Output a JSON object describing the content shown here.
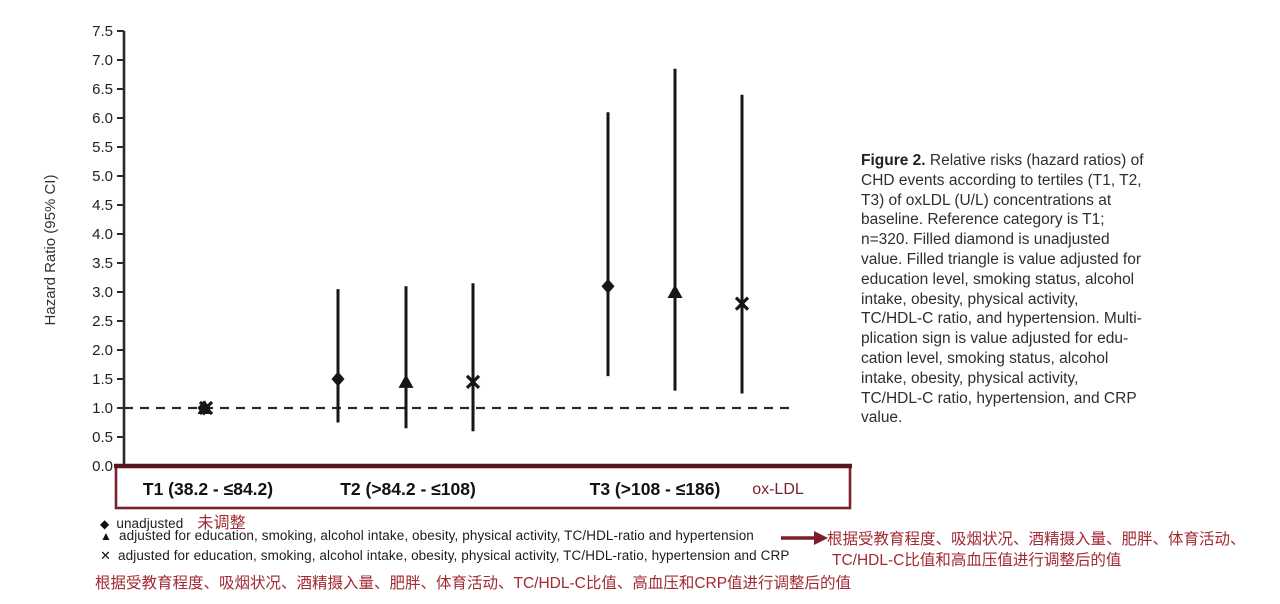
{
  "colors": {
    "plot_black": "#161616",
    "axis_gray": "#2a2a2a",
    "maroon_box": "#7d2130",
    "maroon_dark": "#571520",
    "red_text": "#a12a33",
    "caption_gray": "#2e2e2e"
  },
  "chart_data": {
    "type": "scatter",
    "subtype": "forest-plot-error-bars",
    "title": "",
    "ylabel": "Hazard Ratio (95% CI)",
    "xlabel": "",
    "ylim": [
      0,
      7.5
    ],
    "ytick_step": 0.5,
    "grid": false,
    "reference_line": 1.0,
    "x_group_label": "ox-LDL",
    "categories": [
      "T1 (38.2 - ≤84.2)",
      "T2 (>84.2 - ≤108)",
      "T3 (>108 - ≤186)"
    ],
    "series": [
      {
        "name": "unadjusted",
        "marker": "diamond",
        "values": [
          {
            "category": "T1",
            "hr": 1.0,
            "ci_low": null,
            "ci_high": null
          },
          {
            "category": "T2",
            "hr": 1.5,
            "ci_low": 0.75,
            "ci_high": 3.05
          },
          {
            "category": "T3",
            "hr": 3.1,
            "ci_low": 1.55,
            "ci_high": 6.1
          }
        ]
      },
      {
        "name": "adjusted for education, smoking, alcohol intake, obesity, physical activity, TC/HDL-ratio and hypertension",
        "marker": "triangle",
        "values": [
          {
            "category": "T1",
            "hr": 1.0,
            "ci_low": null,
            "ci_high": null
          },
          {
            "category": "T2",
            "hr": 1.45,
            "ci_low": 0.65,
            "ci_high": 3.1
          },
          {
            "category": "T3",
            "hr": 3.0,
            "ci_low": 1.3,
            "ci_high": 6.85
          }
        ]
      },
      {
        "name": "adjusted for education, smoking, alcohol intake, obesity, physical activity, TC/HDL-ratio, hypertension and CRP",
        "marker": "multiplication-sign",
        "values": [
          {
            "category": "T1",
            "hr": 1.0,
            "ci_low": null,
            "ci_high": null
          },
          {
            "category": "T2",
            "hr": 1.45,
            "ci_low": 0.6,
            "ci_high": 3.15
          },
          {
            "category": "T3",
            "hr": 2.8,
            "ci_low": 1.25,
            "ci_high": 6.4
          }
        ]
      }
    ]
  },
  "legend": {
    "entries": [
      {
        "glyph": "◆",
        "marker": "diamond",
        "text": "unadjusted",
        "annotation_zh": "未调整"
      },
      {
        "glyph": "▲",
        "marker": "triangle",
        "text": "adjusted for education, smoking, alcohol intake, obesity, physical activity, TC/HDL-ratio and hypertension"
      },
      {
        "glyph": "✕",
        "marker": "multiplication-sign",
        "text": "adjusted for education, smoking, alcohol intake, obesity, physical activity, TC/HDL-ratio, hypertension and CRP"
      }
    ]
  },
  "annotations_zh": {
    "right_line1": "根据受教育程度、吸烟状况、酒精摄入量、肥胖、体育活动、",
    "right_line2": "TC/HDL-C比值和高血压值进行调整后的值",
    "bottom": "根据受教育程度、吸烟状况、酒精摄入量、肥胖、体育活动、TC/HDL-C比值、高血压和CRP值进行调整后的值"
  },
  "caption": {
    "label": "Figure 2.",
    "text": "Relative risks (hazard ratios) of\nCHD events according to tertiles (T1, T2,\nT3) of oxLDL (U/L) concentrations at\nbaseline. Reference category is T1;\nn=320. Filled diamond is unadjusted\nvalue. Filled triangle is value adjusted for\neducation level, smoking status, alcohol\nintake, obesity, physical activity,\nTC/HDL-C ratio, and hypertension. Multi-\nplication sign is value adjusted for edu-\ncation level, smoking status, alcohol\nintake, obesity, physical activity,\nTC/HDL-C ratio, hypertension, and CRP\nvalue."
  }
}
